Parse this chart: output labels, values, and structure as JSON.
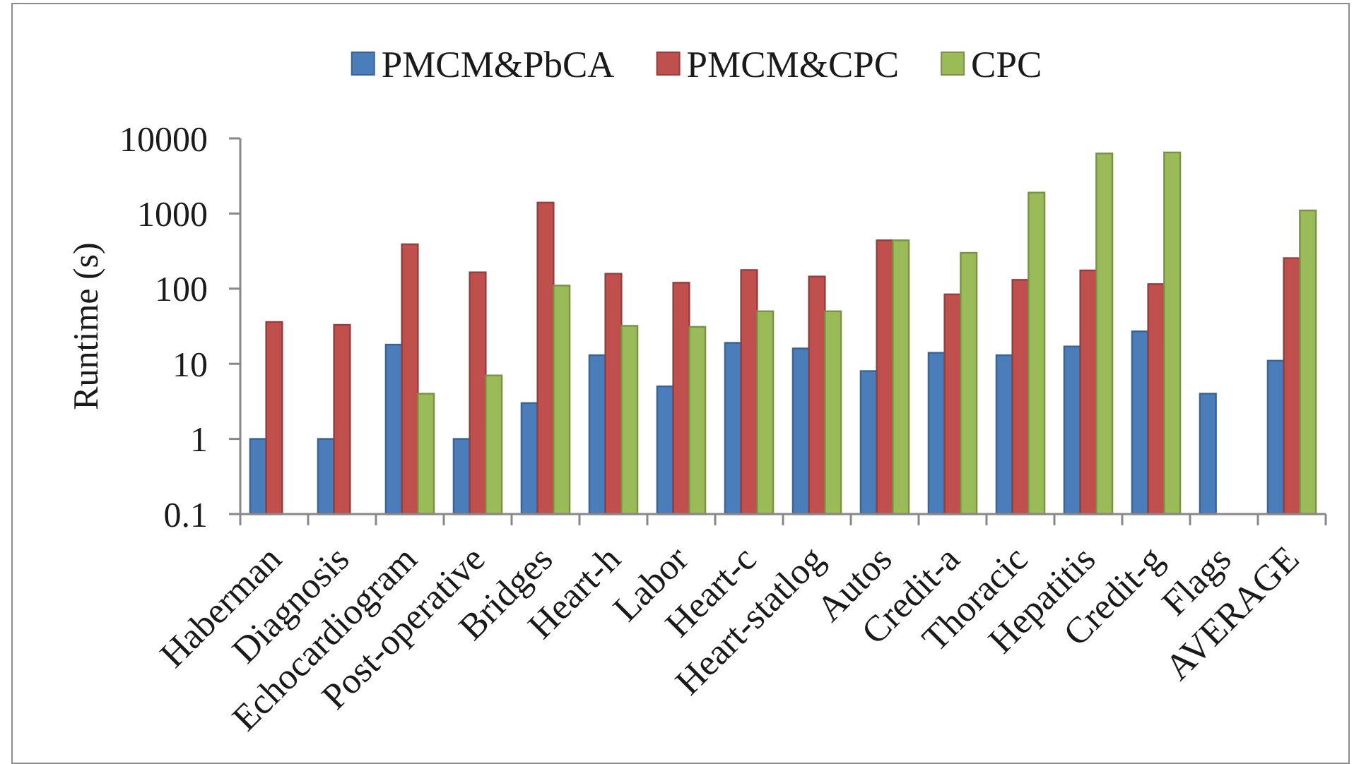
{
  "chart_data": {
    "type": "bar",
    "ylabel": "Runtime (s)",
    "log": true,
    "legend": "top",
    "categories": [
      "Haberman",
      "Diagnosis",
      "Echocardiogram",
      "Post-operative",
      "Bridges",
      "Heart-h",
      "Labor",
      "Heart-c",
      "Heart-statlog",
      "Autos",
      "Credit-a",
      "Thoracic",
      "Hepatitis",
      "Credit-g",
      "Flags",
      "AVERAGE"
    ],
    "series": [
      {
        "name": "PMCM&PbCA",
        "color": "#4a7ebb",
        "values": [
          1,
          1,
          18,
          1,
          3,
          13,
          5,
          19,
          16,
          8,
          14,
          13,
          17,
          27,
          4,
          11
        ]
      },
      {
        "name": "PMCM&CPC",
        "color": "#c0504d",
        "values": [
          36,
          33,
          390,
          165,
          1400,
          158,
          120,
          177,
          145,
          440,
          84,
          131,
          175,
          115,
          null,
          255
        ]
      },
      {
        "name": "CPC",
        "color": "#9bbb59",
        "values": [
          null,
          null,
          4,
          7,
          110,
          32,
          31,
          50,
          50,
          440,
          300,
          1900,
          6300,
          6500,
          null,
          1100
        ]
      }
    ],
    "ylim": [
      0.1,
      10000
    ],
    "yticks": [
      0.1,
      1,
      10,
      100,
      1000,
      10000
    ]
  }
}
